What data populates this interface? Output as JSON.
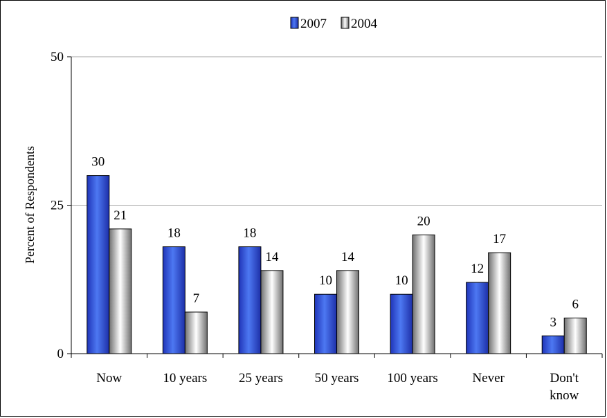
{
  "chart_data": {
    "type": "bar",
    "categories": [
      "Now",
      "10 years",
      "25 years",
      "50 years",
      "100 years",
      "Never",
      "Don't know"
    ],
    "series": [
      {
        "name": "2007",
        "values": [
          30,
          18,
          18,
          10,
          10,
          12,
          3
        ],
        "color": "#3a5de0"
      },
      {
        "name": "2004",
        "values": [
          21,
          7,
          14,
          14,
          20,
          17,
          6
        ],
        "color": "#d9d9d9"
      }
    ],
    "data_labels": [
      [
        "30",
        "18",
        "18",
        "10",
        "10",
        "12",
        "3"
      ],
      [
        "21",
        "7",
        "14",
        "14",
        "20",
        "17",
        "6"
      ]
    ],
    "ylabel": "Percent of Respondents",
    "ylim": [
      0,
      50
    ],
    "yticks": [
      "0",
      "25",
      "50"
    ],
    "grid": true,
    "legend_position": "top-center"
  }
}
